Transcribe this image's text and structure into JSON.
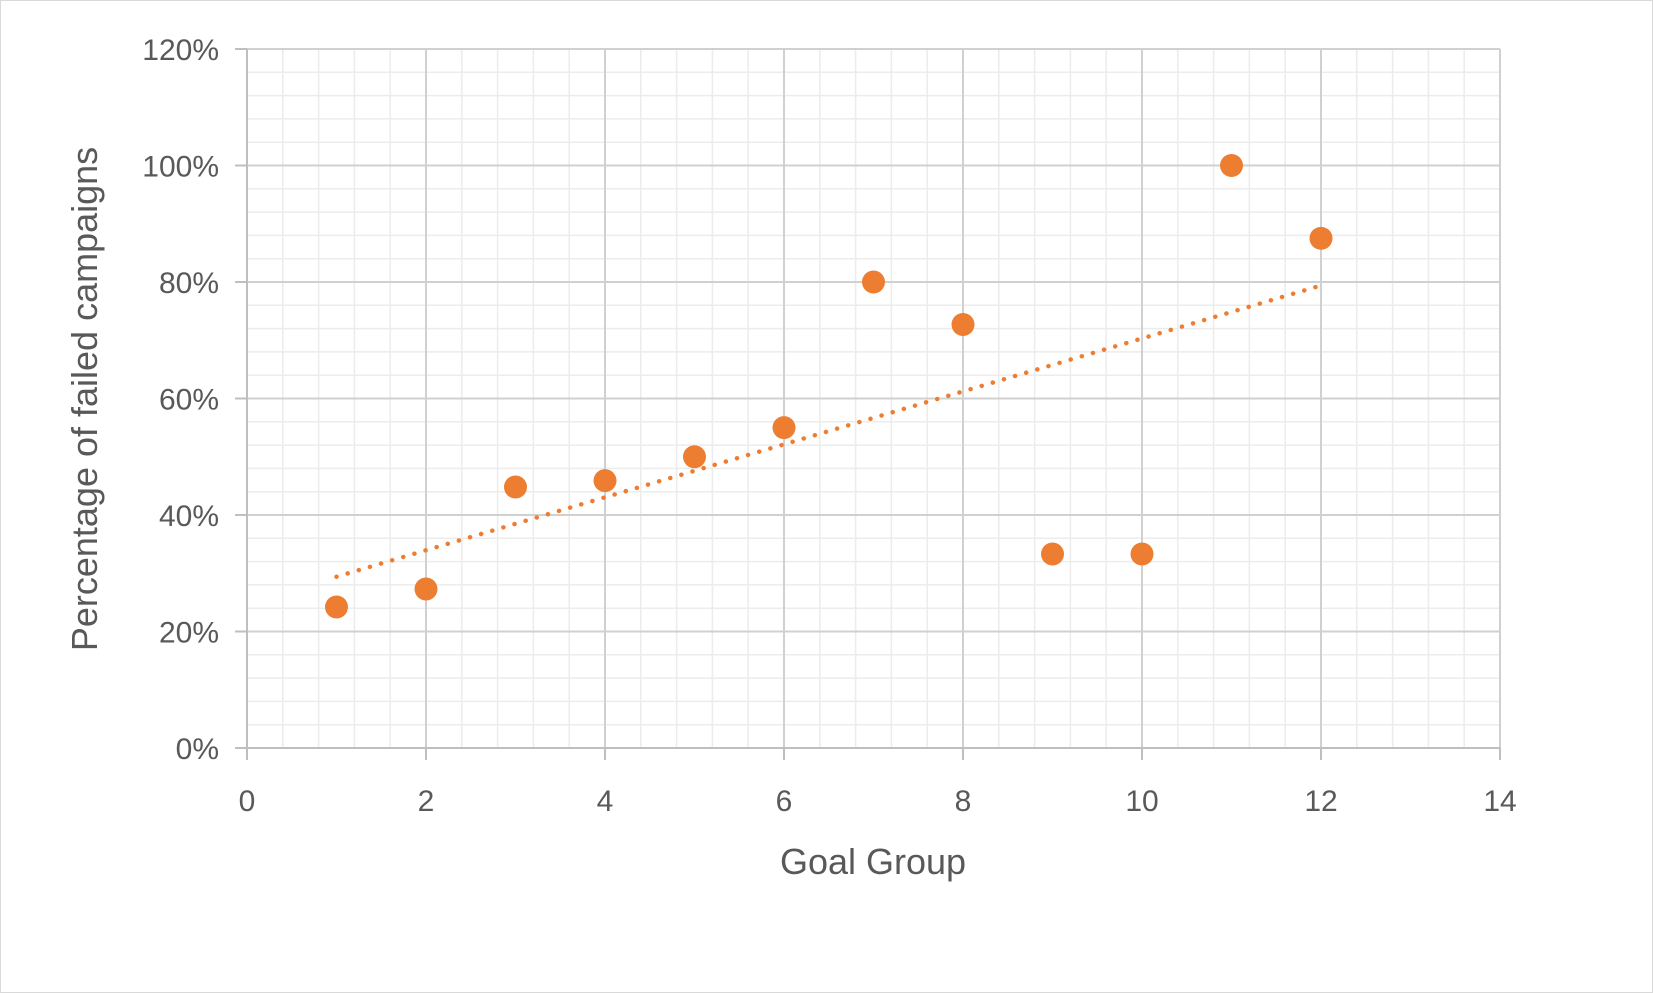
{
  "chart_data": {
    "type": "scatter",
    "title": "",
    "xlabel": "Goal Group",
    "ylabel": "Percentage of failed campaigns",
    "xlim": [
      0,
      14
    ],
    "ylim": [
      0,
      1.2
    ],
    "x_ticks": [
      0,
      2,
      4,
      6,
      8,
      10,
      12,
      14
    ],
    "y_ticks": [
      0,
      0.2,
      0.4,
      0.6,
      0.8,
      1.0,
      1.2
    ],
    "y_tick_format": "percent",
    "grid": "major and minor",
    "legend": "none",
    "series": [
      {
        "x": [
          1,
          2,
          3,
          4,
          5,
          6,
          7,
          8,
          9,
          10,
          11,
          12
        ],
        "y": [
          0.242,
          0.273,
          0.448,
          0.459,
          0.5,
          0.55,
          0.8,
          0.727,
          0.333,
          0.333,
          1.0,
          0.875
        ],
        "color": "#ED7D31"
      }
    ],
    "trendline": {
      "type": "linear",
      "style": "dotted",
      "color": "#ED7D31",
      "x": [
        1,
        12
      ],
      "y": [
        0.294,
        0.794
      ]
    }
  }
}
